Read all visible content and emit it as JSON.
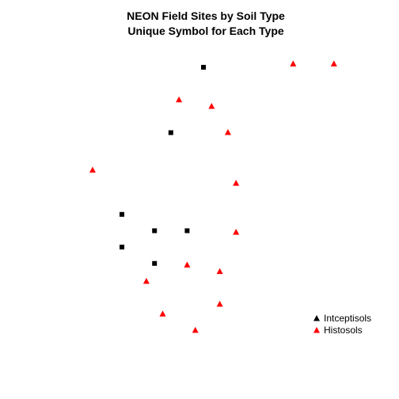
{
  "chart_data": {
    "type": "scatter",
    "title": "NEON Field Sites by Soil Type",
    "subtitle": "Unique Symbol for Each Type",
    "xlabel": "",
    "ylabel": "",
    "grid": false,
    "axes_visible": false,
    "legend_position": "bottom-right",
    "series": [
      {
        "name": "Intceptisols",
        "marker": "square",
        "color": "#000000",
        "points": [
          {
            "x": 5,
            "y": 17
          },
          {
            "x": 3,
            "y": 13
          },
          {
            "x": 0,
            "y": 8
          },
          {
            "x": 2,
            "y": 7
          },
          {
            "x": 4,
            "y": 7
          },
          {
            "x": 0,
            "y": 6
          },
          {
            "x": 2,
            "y": 5
          }
        ]
      },
      {
        "name": "Histosols",
        "marker": "triangle",
        "color": "#ff0000",
        "points": [
          {
            "x": 10.5,
            "y": 17.2
          },
          {
            "x": 13,
            "y": 17.2
          },
          {
            "x": 3.5,
            "y": 15
          },
          {
            "x": 5.5,
            "y": 14.6
          },
          {
            "x": 6.5,
            "y": 13
          },
          {
            "x": -1.8,
            "y": 10.7
          },
          {
            "x": 7,
            "y": 9.9
          },
          {
            "x": 7,
            "y": 6.9
          },
          {
            "x": 4,
            "y": 4.9
          },
          {
            "x": 6,
            "y": 4.5
          },
          {
            "x": 1.5,
            "y": 3.9
          },
          {
            "x": 6,
            "y": 2.5
          },
          {
            "x": 2.5,
            "y": 1.9
          },
          {
            "x": 4.5,
            "y": 0.9
          }
        ]
      }
    ],
    "xlim": [
      -2,
      13
    ],
    "ylim": [
      0,
      18
    ]
  }
}
